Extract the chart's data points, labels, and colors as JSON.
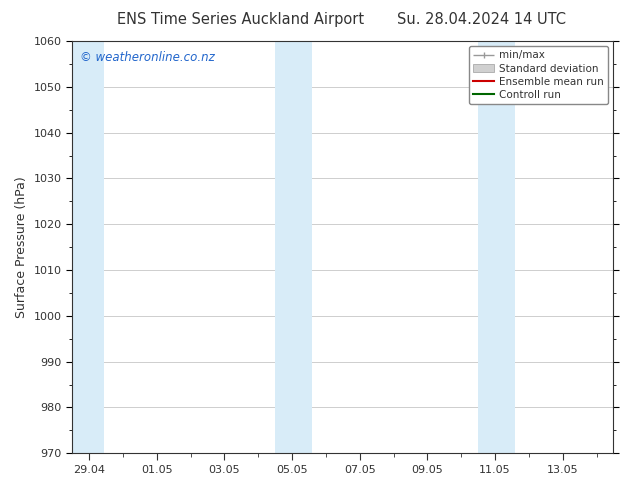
{
  "title_left": "ENS Time Series Auckland Airport",
  "title_right": "Su. 28.04.2024 14 UTC",
  "ylabel": "Surface Pressure (hPa)",
  "ylim": [
    970,
    1060
  ],
  "yticks": [
    970,
    980,
    990,
    1000,
    1010,
    1020,
    1030,
    1040,
    1050,
    1060
  ],
  "x_tick_labels": [
    "29.04",
    "01.05",
    "03.05",
    "05.05",
    "07.05",
    "09.05",
    "11.05",
    "13.05"
  ],
  "x_tick_positions": [
    0,
    2,
    4,
    6,
    8,
    10,
    12,
    14
  ],
  "x_lim": [
    -0.5,
    15.5
  ],
  "shaded_bands": [
    {
      "x_start": -0.5,
      "x_end": 0.3,
      "color": "#ddeef8"
    },
    {
      "x_start": 5.7,
      "x_end": 6.3,
      "color": "#ddeef8"
    },
    {
      "x_start": 6.3,
      "x_end": 6.9,
      "color": "#c8e0f0"
    },
    {
      "x_start": 11.7,
      "x_end": 12.3,
      "color": "#ddeef8"
    },
    {
      "x_start": 12.3,
      "x_end": 12.9,
      "color": "#c8e0f0"
    }
  ],
  "watermark": "© weatheronline.co.nz",
  "watermark_color": "#2266cc",
  "bg_color": "#ffffff",
  "plot_bg_color": "#ffffff",
  "grid_color": "#bbbbbb",
  "tick_color": "#333333",
  "font_color": "#333333",
  "band_color": "#ddeef8"
}
